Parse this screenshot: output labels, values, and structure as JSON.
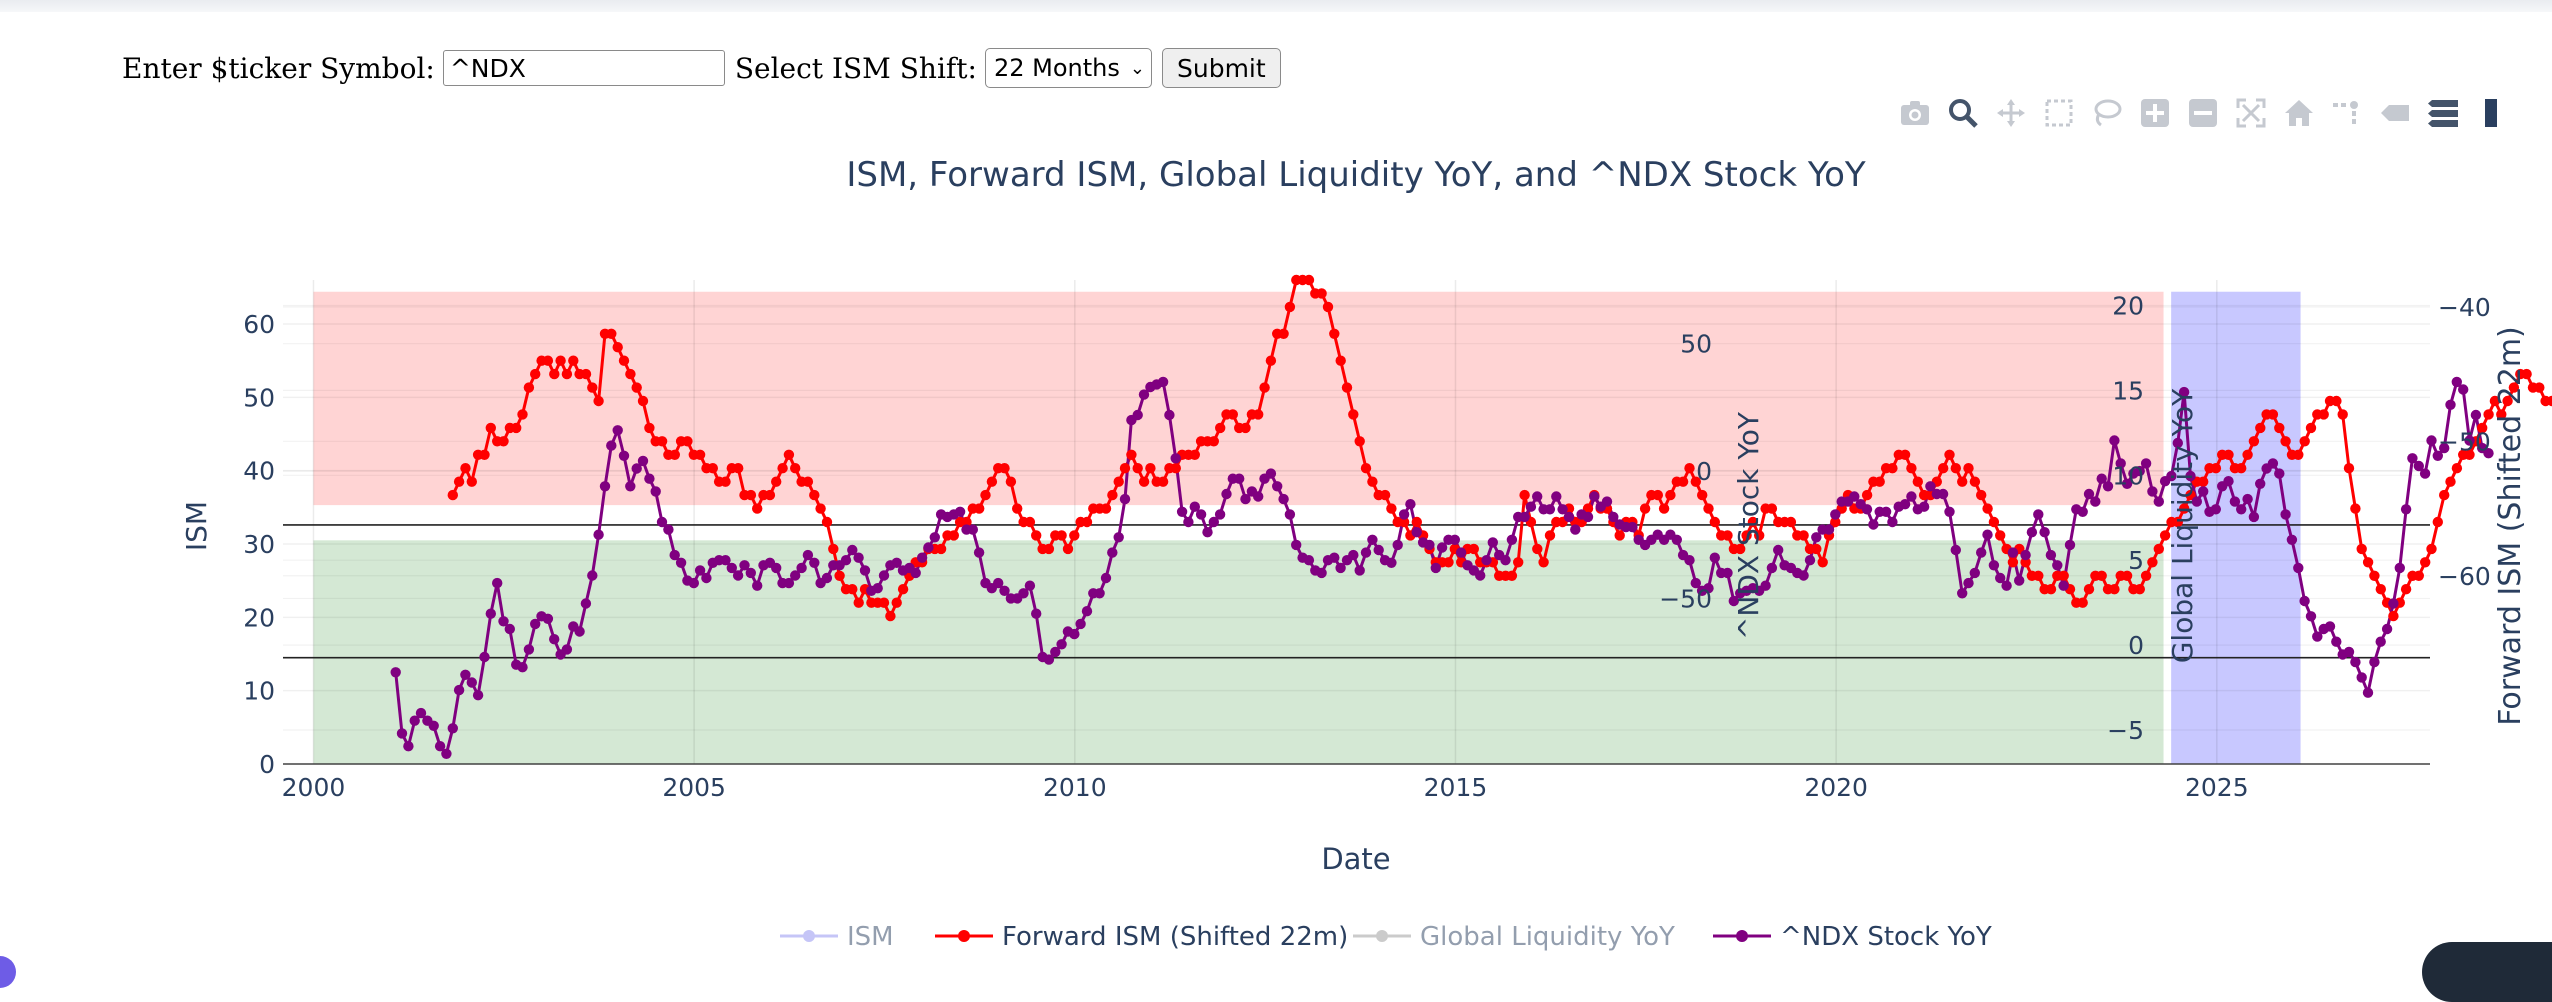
{
  "form": {
    "ticker_label": "Enter $ticker Symbol:",
    "ticker_value": "^NDX",
    "shift_label": "Select ISM Shift:",
    "shift_selected": "22 Months",
    "submit_label": "Submit"
  },
  "modebar": {
    "icons": [
      "camera-icon",
      "zoom-icon",
      "pan-icon",
      "box-select-icon",
      "lasso-select-icon",
      "zoom-in-icon",
      "zoom-out-icon",
      "autoscale-icon",
      "reset-axes-icon",
      "spike-lines-icon",
      "hover-closest-icon",
      "hover-compare-icon",
      "plotly-logo-icon"
    ]
  },
  "colors": {
    "ism": "#8c8cf0",
    "forward_ism": "#ff0000",
    "liquidity": "#999999",
    "ndx": "#800080",
    "red_zone": "#ffd4d4",
    "green_zone": "#d4e8d4",
    "blue_zone": "#c8c8ff",
    "text": "#2a3f5f"
  },
  "chart_data": {
    "type": "line",
    "title": "ISM, Forward ISM, Global Liquidity YoY, and ^NDX Stock YoY",
    "xlabel": "Date",
    "x_ticks": [
      "2000",
      "2005",
      "2010",
      "2015",
      "2020",
      "2025"
    ],
    "x_range": [
      1999.6,
      2027.8
    ],
    "axes": {
      "ism": {
        "title": "ISM",
        "range": [
          0,
          66
        ],
        "ticks": [
          "0",
          "10",
          "20",
          "30",
          "40",
          "50",
          "60"
        ]
      },
      "forward_ism": {
        "title": "Forward ISM (Shifted 22m)",
        "range": [
          -74,
          -38
        ],
        "ticks": [
          "−60",
          "−50",
          "−40"
        ]
      },
      "liquidity": {
        "title": "Global Liquidity YoY",
        "range": [
          -7,
          21.5
        ],
        "ticks": [
          "−5",
          "0",
          "5",
          "10",
          "15",
          "20"
        ]
      },
      "ndx": {
        "title": "^NDX Stock YoY",
        "range": [
          -115,
          75
        ],
        "ticks": [
          "−50",
          "0",
          "50"
        ]
      }
    },
    "shapes": [
      {
        "name": "expansion-zone",
        "x": [
          2000,
          2024.3
        ],
        "ism": [
          35.3,
          64.4
        ]
      },
      {
        "name": "contraction-zone",
        "x": [
          2000,
          2024.3
        ],
        "ism": [
          0,
          30.5
        ]
      },
      {
        "name": "forecast-zone",
        "x": [
          2024.4,
          2026.1
        ],
        "ism": [
          0,
          64.4
        ]
      }
    ],
    "hlines_ism": [
      32.6,
      14.5
    ],
    "legend": {
      "position": "bottom",
      "entries": [
        "ISM",
        "Forward ISM (Shifted 22m)",
        "Global Liquidity YoY",
        "^NDX Stock YoY"
      ]
    },
    "series": [
      {
        "name": "Forward ISM (Shifted 22m)",
        "axis": "forward_ism",
        "color": "#ff0000",
        "start": 2001.83,
        "step": 0.0833,
        "values": [
          -54,
          -53,
          -52,
          -53,
          -51,
          -51,
          -49,
          -50,
          -50,
          -49,
          -49,
          -48,
          -46,
          -45,
          -44,
          -44,
          -45,
          -44,
          -45,
          -44,
          -45,
          -45,
          -46,
          -47,
          -42,
          -42,
          -43,
          -44,
          -45,
          -46,
          -47,
          -49,
          -50,
          -50,
          -51,
          -51,
          -50,
          -50,
          -51,
          -51,
          -52,
          -52,
          -53,
          -53,
          -52,
          -52,
          -54,
          -54,
          -55,
          -54,
          -54,
          -53,
          -52,
          -51,
          -52,
          -53,
          -53,
          -54,
          -55,
          -56,
          -58,
          -60,
          -61,
          -61,
          -62,
          -61,
          -62,
          -62,
          -62,
          -63,
          -62,
          -61,
          -60,
          -59,
          -59,
          -58,
          -58,
          -58,
          -57,
          -57,
          -56,
          -56,
          -55,
          -55,
          -54,
          -53,
          -52,
          -52,
          -53,
          -55,
          -56,
          -56,
          -57,
          -58,
          -58,
          -57,
          -57,
          -58,
          -57,
          -56,
          -56,
          -55,
          -55,
          -55,
          -54,
          -53,
          -52,
          -51,
          -52,
          -53,
          -52,
          -53,
          -53,
          -52,
          -52,
          -51,
          -51,
          -51,
          -50,
          -50,
          -50,
          -49,
          -48,
          -48,
          -49,
          -49,
          -48,
          -48,
          -46,
          -44,
          -42,
          -42,
          -40,
          -38,
          -38,
          -38,
          -39,
          -39,
          -40,
          -42,
          -44,
          -46,
          -48,
          -50,
          -52,
          -53,
          -54,
          -54,
          -55,
          -56,
          -56,
          -57,
          -56,
          -57,
          -58,
          -59,
          -59,
          -59,
          -58,
          -59,
          -58,
          -58,
          -59,
          -59,
          -59,
          -60,
          -60,
          -60,
          -59,
          -54,
          -56,
          -58,
          -59,
          -57,
          -56,
          -56,
          -55,
          -56,
          -56,
          -55,
          -54,
          -55,
          -55,
          -56,
          -57,
          -56,
          -56,
          -57,
          -55,
          -54,
          -54,
          -55,
          -54,
          -53,
          -53,
          -52,
          -53,
          -54,
          -55,
          -56,
          -57,
          -57,
          -58,
          -58,
          -57,
          -56,
          -57,
          -55,
          -55,
          -56,
          -56,
          -56,
          -57,
          -57,
          -58,
          -58,
          -59,
          -57,
          -56,
          -55,
          -54,
          -55,
          -55,
          -54,
          -53,
          -53,
          -52,
          -52,
          -51,
          -51,
          -52,
          -53,
          -54,
          -54,
          -53,
          -52,
          -51,
          -52,
          -53,
          -52,
          -53,
          -54,
          -55,
          -56,
          -57,
          -58,
          -59,
          -58,
          -59,
          -60,
          -60,
          -61,
          -61,
          -60,
          -60,
          -61,
          -62,
          -62,
          -61,
          -60,
          -60,
          -61,
          -61,
          -60,
          -60,
          -61,
          -61,
          -60,
          -59,
          -58,
          -57,
          -56,
          -56,
          -55,
          -54,
          -53,
          -53,
          -52,
          -52,
          -51,
          -51,
          -52,
          -52,
          -51,
          -50,
          -49,
          -48,
          -48,
          -49,
          -50,
          -51,
          -51,
          -50,
          -49,
          -48,
          -48,
          -47,
          -47,
          -48,
          -52,
          -55,
          -58,
          -59,
          -60,
          -61,
          -62,
          -63,
          -62,
          -61,
          -60,
          -60,
          -59,
          -58,
          -56,
          -54,
          -53,
          -52,
          -51,
          -51,
          -50,
          -49,
          -48,
          -47,
          -48,
          -47,
          -46,
          -45,
          -45,
          -46,
          -46,
          -47,
          -47,
          -48,
          -48,
          -47
        ]
      },
      {
        "name": "^NDX Stock YoY",
        "axis": "ndx",
        "color": "#800080",
        "start": 2001.08,
        "step": 0.0833,
        "values": [
          -79,
          -103,
          -108,
          -98,
          -95,
          -98,
          -100,
          -108,
          -111,
          -101,
          -86,
          -80,
          -83,
          -88,
          -73,
          -56,
          -44,
          -59,
          -62,
          -76,
          -77,
          -70,
          -60,
          -57,
          -58,
          -66,
          -72,
          -70,
          -61,
          -63,
          -52,
          -41,
          -25,
          -6,
          10,
          16,
          6,
          -6,
          1,
          4,
          -3,
          -8,
          -20,
          -23,
          -33,
          -36,
          -43,
          -44,
          -39,
          -42,
          -36,
          -35,
          -35,
          -38,
          -41,
          -37,
          -40,
          -45,
          -37,
          -36,
          -38,
          -44,
          -44,
          -41,
          -38,
          -33,
          -36,
          -44,
          -42,
          -37,
          -37,
          -35,
          -31,
          -34,
          -39,
          -47,
          -46,
          -41,
          -37,
          -36,
          -39,
          -38,
          -40,
          -34,
          -30,
          -26,
          -17,
          -18,
          -17,
          -16,
          -23,
          -23,
          -32,
          -44,
          -46,
          -44,
          -47,
          -50,
          -50,
          -48,
          -45,
          -56,
          -73,
          -74,
          -71,
          -68,
          -63,
          -64,
          -60,
          -55,
          -48,
          -48,
          -42,
          -32,
          -26,
          -11,
          20,
          22,
          30,
          33,
          34,
          35,
          22,
          5,
          -16,
          -20,
          -14,
          -17,
          -24,
          -20,
          -17,
          -9,
          -3,
          -3,
          -11,
          -8,
          -10,
          -3,
          -1,
          -6,
          -11,
          -17,
          -29,
          -34,
          -35,
          -39,
          -40,
          -35,
          -34,
          -38,
          -35,
          -33,
          -39,
          -32,
          -27,
          -31,
          -35,
          -36,
          -29,
          -17,
          -13,
          -24,
          -28,
          -29,
          -38,
          -30,
          -27,
          -27,
          -32,
          -37,
          -39,
          -41,
          -35,
          -28,
          -33,
          -35,
          -27,
          -18,
          -18,
          -14,
          -10,
          -15,
          -15,
          -10,
          -15,
          -18,
          -23,
          -17,
          -18,
          -10,
          -14,
          -12,
          -18,
          -21,
          -22,
          -22,
          -27,
          -29,
          -27,
          -25,
          -27,
          -25,
          -27,
          -33,
          -35,
          -44,
          -47,
          -46,
          -34,
          -40,
          -40,
          -51,
          -48,
          -47,
          -46,
          -47,
          -45,
          -38,
          -31,
          -37,
          -38,
          -40,
          -41,
          -35,
          -26,
          -23,
          -23,
          -17,
          -12,
          -12,
          -10,
          -13,
          -15,
          -21,
          -16,
          -16,
          -20,
          -14,
          -13,
          -10,
          -15,
          -14,
          -6,
          -9,
          -9,
          -16,
          -31,
          -48,
          -44,
          -40,
          -32,
          -25,
          -37,
          -42,
          -45,
          -32,
          -43,
          -33,
          -24,
          -17,
          -24,
          -33,
          -37,
          -45,
          -29,
          -15,
          -16,
          -9,
          -12,
          -3,
          -6,
          12,
          3,
          -5,
          -1,
          0,
          3,
          -8,
          -12,
          -4,
          -2,
          11,
          31,
          -2,
          -12,
          -8,
          -16,
          -15,
          -6,
          -4,
          -12,
          -15,
          -11,
          -18,
          -5,
          1,
          3,
          -1,
          -17,
          -27,
          -38,
          -51,
          -57,
          -65,
          -62,
          -61,
          -67,
          -72,
          -71,
          -75,
          -81,
          -87,
          -75,
          -67,
          -62,
          -52,
          -38,
          -15,
          5,
          2,
          -1,
          12,
          6,
          9,
          26,
          35,
          32,
          12,
          22,
          9,
          7
        ]
      }
    ]
  }
}
